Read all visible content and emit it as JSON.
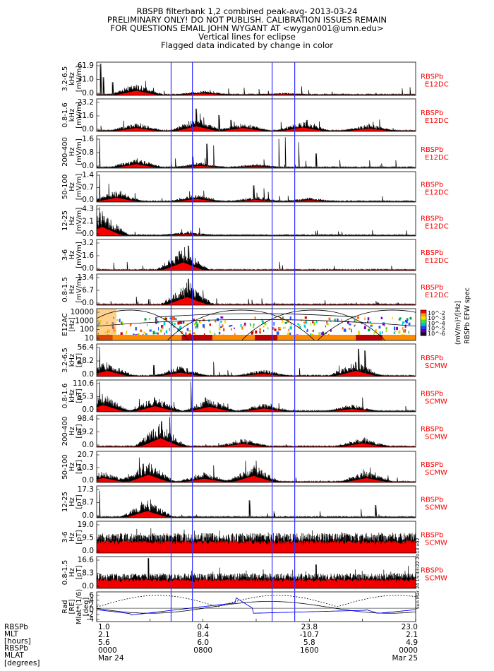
{
  "header": {
    "lines": [
      "RBSPB filterbank 1,2 combined peak-avg- 2013-03-24",
      "PRELIMINARY ONLY! DO NOT PUBLISH. CALIBRATION ISSUES REMAIN",
      "FOR QUESTIONS EMAIL JOHN WYGANT AT <wygan001@umn.edu>",
      "Vertical lines for eclipse",
      "Flagged data indicated by change in color"
    ]
  },
  "colors": {
    "peak": "#000000",
    "avg_flagged": "#ff0000",
    "eclipse_line": "#3030ff",
    "panel_label": "#ff0000",
    "mlt_line": "#0000ff"
  },
  "chart_data": {
    "type": "line",
    "x_axis": {
      "tick_labels": [
        "0000\nMar 24",
        "0800",
        "1600",
        "0000\nMar 25"
      ],
      "positions": [
        0,
        8,
        16,
        24
      ],
      "range": [
        0,
        24
      ]
    },
    "eclipse_hours": [
      5.6,
      7.2,
      13.2,
      14.9
    ],
    "panels": [
      {
        "ylabel": [
          "3.2-6.5",
          "kHz",
          "[mV/m]"
        ],
        "ticks": [
          "61.9",
          "31.0",
          "0.0"
        ],
        "ymax": 61.9,
        "right": [
          "RBSPb",
          "E12DC"
        ],
        "baseline_pos": [
          3,
          8,
          14
        ],
        "baseline_hgt": [
          0.35,
          0.12,
          0.05
        ],
        "spikes": [
          [
            0.3,
            0.95
          ],
          [
            0.5,
            0.55
          ],
          [
            1.2,
            0.4
          ],
          [
            7.2,
            0.18
          ]
        ]
      },
      {
        "ylabel": [
          "0.8-1.6",
          "kHz",
          "[mV/m]"
        ],
        "ticks": [
          "23.2",
          "11.6",
          "0.0"
        ],
        "ymax": 23.2,
        "right": [
          "RBSPb",
          "E12DC"
        ],
        "baseline_pos": [
          3,
          7.5,
          11,
          15.5,
          20.5
        ],
        "baseline_hgt": [
          0.25,
          0.4,
          0.25,
          0.3,
          0.2
        ],
        "spikes": [
          [
            7.5,
            0.7
          ],
          [
            7.8,
            0.55
          ],
          [
            9.2,
            0.5
          ],
          [
            10.1,
            0.35
          ],
          [
            15.8,
            0.35
          ],
          [
            20.8,
            0.3
          ]
        ]
      },
      {
        "ylabel": [
          "200-400",
          "Hz",
          "[mV/m]"
        ],
        "ticks": [
          "1.6",
          "0.8",
          "0.0"
        ],
        "ymax": 1.6,
        "right": [
          "RBSPb",
          "E12DC"
        ],
        "baseline_pos": [
          3,
          7.8,
          12
        ],
        "baseline_hgt": [
          0.3,
          0.15,
          0.1
        ],
        "spikes": [
          [
            0.2,
            0.9
          ],
          [
            8.3,
            0.75
          ],
          [
            8.8,
            0.7
          ],
          [
            13.7,
            0.9
          ],
          [
            14.2,
            0.95
          ],
          [
            15.2,
            0.8
          ],
          [
            16.5,
            0.45
          ]
        ]
      },
      {
        "ylabel": [
          "50-100",
          "Hz",
          "[mV/m]"
        ],
        "ticks": [
          "1.4",
          "0.7",
          "0.0"
        ],
        "ymax": 1.4,
        "right": [
          "RBSPb",
          "E12DC"
        ],
        "baseline_pos": [
          1.5,
          7.5,
          12,
          16
        ],
        "baseline_hgt": [
          0.35,
          0.25,
          0.15,
          0.12
        ],
        "spikes": [
          [
            0.2,
            0.9
          ],
          [
            0.9,
            0.6
          ],
          [
            7.0,
            0.35
          ],
          [
            11.8,
            0.55
          ],
          [
            12.6,
            0.45
          ]
        ]
      },
      {
        "ylabel": [
          "12-25",
          "Hz",
          "[mV/m]"
        ],
        "ticks": [
          "4.3",
          "2.1",
          "0.0"
        ],
        "ymax": 4.3,
        "right": [
          "RBSPb",
          "E12DC"
        ],
        "baseline_pos": [
          0.4,
          6.8
        ],
        "baseline_hgt": [
          0.8,
          0.12
        ],
        "spikes": [
          [
            0.2,
            0.95
          ],
          [
            6.4,
            0.22
          ],
          [
            7.1,
            0.18
          ]
        ]
      },
      {
        "ylabel": [
          "3-6",
          "Hz",
          "[mV/m]"
        ],
        "ticks": [
          "3.2",
          "1.6",
          "0.0"
        ],
        "ymax": 3.2,
        "right": [
          "RBSPb",
          "E12DC"
        ],
        "baseline_pos": [
          6.5
        ],
        "baseline_hgt": [
          0.7
        ],
        "spikes": [
          [
            6.6,
            0.75
          ],
          [
            6.9,
            0.8
          ],
          [
            7.2,
            0.7
          ]
        ]
      },
      {
        "ylabel": [
          "0.8-1.5",
          "Hz",
          "[mV/m]"
        ],
        "ticks": [
          "13.4",
          "6.7",
          "0.0"
        ],
        "ymax": 13.4,
        "right": [
          "RBSPb",
          "E12DC"
        ],
        "baseline_pos": [
          6.8
        ],
        "baseline_hgt": [
          0.7
        ],
        "spikes": [
          [
            6.7,
            0.55
          ],
          [
            6.9,
            0.85
          ],
          [
            7.1,
            0.7
          ]
        ]
      },
      {
        "kind": "spectrogram",
        "ylabel": [
          "E12AC",
          "[Hz]"
        ],
        "ticks": [
          "10000",
          "1000",
          "100",
          "10"
        ],
        "right_colorbar": true
      },
      {
        "ylabel": [
          "3.2-6.5",
          "kHz",
          "[pT]"
        ],
        "ticks": [
          "56.4",
          "28.2",
          "0.0"
        ],
        "ymax": 56.4,
        "right": [
          "RBSPb",
          "SCMW"
        ],
        "baseline_pos": [
          0.8,
          6.3,
          12.5,
          19.5
        ],
        "baseline_hgt": [
          0.45,
          0.3,
          0.2,
          0.45
        ],
        "spikes": [
          [
            0.2,
            0.9
          ],
          [
            4.3,
            0.35
          ],
          [
            8.8,
            0.45
          ],
          [
            19.7,
            0.85
          ],
          [
            20.2,
            0.8
          ]
        ]
      },
      {
        "ylabel": [
          "0.8-1.6",
          "kHz",
          "[pT]"
        ],
        "ticks": [
          "110.6",
          "55.3",
          "0.0"
        ],
        "ymax": 110.6,
        "right": [
          "RBSPb",
          "SCMW"
        ],
        "baseline_pos": [
          0.5,
          4.4,
          8.5,
          12.6,
          19.2
        ],
        "baseline_hgt": [
          0.55,
          0.45,
          0.4,
          0.25,
          0.2
        ],
        "spikes": [
          [
            0.2,
            0.95
          ],
          [
            3.2,
            0.4
          ],
          [
            7.1,
            0.95
          ],
          [
            8.2,
            0.45
          ],
          [
            20.0,
            0.45
          ]
        ]
      },
      {
        "ylabel": [
          "200-400",
          "Hz",
          "[pT]"
        ],
        "ticks": [
          "98.4",
          "49.2",
          "0.0"
        ],
        "ymax": 98.4,
        "right": [
          "RBSPb",
          "SCMW"
        ],
        "baseline_pos": [
          4.8,
          11.0,
          20.0
        ],
        "baseline_hgt": [
          0.75,
          0.25,
          0.3
        ],
        "spikes": [
          [
            5.5,
            0.95
          ],
          [
            4.9,
            0.8
          ]
        ]
      },
      {
        "ylabel": [
          "50-100",
          "Hz",
          "[pT]"
        ],
        "ticks": [
          "20.7",
          "10.3",
          "0.0"
        ],
        "ymax": 20.7,
        "right": [
          "RBSPb",
          "SCMW"
        ],
        "baseline_pos": [
          0.5,
          3.9,
          8.1,
          11.8,
          20.3
        ],
        "baseline_hgt": [
          0.35,
          0.65,
          0.3,
          0.55,
          0.35
        ],
        "spikes": [
          [
            3.2,
            0.8
          ],
          [
            3.5,
            0.6
          ],
          [
            8.8,
            0.55
          ],
          [
            11.2,
            0.7
          ]
        ]
      },
      {
        "ylabel": [
          "12-25",
          "Hz",
          "[pT]"
        ],
        "ticks": [
          "17.3",
          "8.7",
          "0.0"
        ],
        "ymax": 17.3,
        "right": [
          "RBSPb",
          "SCMW"
        ],
        "baseline_pos": [
          3.8
        ],
        "baseline_hgt": [
          0.55
        ],
        "spikes": [
          [
            0.2,
            0.85
          ],
          [
            11.5,
            0.55
          ],
          [
            21.0,
            0.4
          ]
        ]
      },
      {
        "ylabel": [
          "3-6",
          "Hz",
          "[pT]"
        ],
        "ticks": [
          "19.0",
          "9.5",
          "0.0"
        ],
        "ymax": 19.0,
        "right": [
          "RBSPb",
          "SCMW"
        ],
        "baseline_pos": [
          12
        ],
        "baseline_hgt": [
          0.05
        ],
        "spikes": [],
        "dense": true,
        "dense_level": 0.6
      },
      {
        "ylabel": [
          "0.8-1.5",
          "Hz",
          "[pT]"
        ],
        "ticks": [
          "16.6",
          "8.3",
          "0.0"
        ],
        "ymax": 16.6,
        "right": [
          "RBSPb",
          "SCMW"
        ],
        "baseline_pos": [
          12
        ],
        "baseline_hgt": [
          0.05
        ],
        "spikes": [
          [
            3.9,
            0.95
          ],
          [
            16.5,
            0.75
          ]
        ],
        "dense": true,
        "dense_level": 0.45,
        "right_extra": "[black]",
        "right_extra2": "(blue)"
      },
      {
        "kind": "ephemeris",
        "ylabel": [
          "Rad",
          "[RE]",
          "Mlat*(1/6)",
          "[deg]"
        ],
        "ticks": [
          "6",
          "4",
          "2",
          "0",
          "-2",
          "-4"
        ]
      }
    ],
    "colorbar": {
      "ticks": [
        "10^-2",
        "10^-3",
        "10^-4",
        "10^-5",
        "10^-6"
      ],
      "label": "(mV/m)²/[Hz]",
      "label2": "RBSPb EFW spec"
    },
    "ephemeris": {
      "row_labels": [
        "RBSPb",
        "MLT",
        "[hours]",
        "RBSPb",
        "MLAT",
        "[degrees]"
      ],
      "columns": [
        {
          "hour": 0,
          "mlt": "1.0",
          "mlat1": "2.1",
          "mlat2": "5.6",
          "time": "0000",
          "date": "Mar 24"
        },
        {
          "hour": 8,
          "mlt": "0.4",
          "mlat1": "8.4",
          "mlat2": "6.0",
          "time": "0800",
          "date": ""
        },
        {
          "hour": 16,
          "mlt": "23.8",
          "mlat1": "-10.7",
          "mlat2": "5.8",
          "time": "1600",
          "date": ""
        },
        {
          "hour": 24,
          "mlt": "23.0",
          "mlat1": "2.1",
          "mlat2": "4.9",
          "time": "0000",
          "date": "Mar 25"
        }
      ]
    },
    "footnote": "Sun Mar 24 15:43:22 2013 v02"
  }
}
